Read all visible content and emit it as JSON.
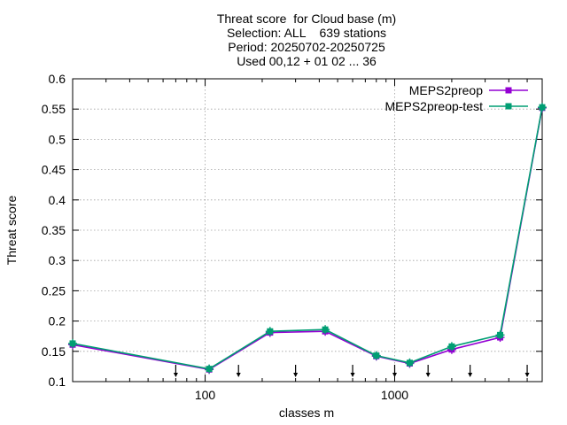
{
  "chart_data": {
    "type": "line",
    "title_lines": [
      "Threat score  for Cloud base (m)",
      "Selection: ALL    639 stations",
      "Period: 20250702-20250725",
      "Used 00,12 + 01 02 ... 36"
    ],
    "xlabel": "classes m",
    "ylabel": "Threat score",
    "x_scale": "log",
    "xlim": [
      20,
      6000
    ],
    "ylim": [
      0.1,
      0.6
    ],
    "x_ticks": [
      {
        "value": 100,
        "label": "100"
      },
      {
        "value": 1000,
        "label": "1000"
      }
    ],
    "y_ticks": [
      0.1,
      0.15,
      0.2,
      0.25,
      0.3,
      0.35,
      0.4,
      0.45,
      0.5,
      0.55,
      0.6
    ],
    "y_tick_labels": [
      "0.1",
      "0.15",
      "0.2",
      "0.25",
      "0.3",
      "0.35",
      "0.4",
      "0.45",
      "0.5",
      "0.55",
      "0.6"
    ],
    "grid": true,
    "legend_position": "top-right",
    "class_markers_x": [
      70,
      150,
      300,
      600,
      1000,
      1500,
      2500,
      5000
    ],
    "x": [
      20,
      105,
      220,
      430,
      800,
      1200,
      2000,
      3600,
      6000
    ],
    "series": [
      {
        "name": "MEPS2preop",
        "color": "#9400d3",
        "values": [
          0.161,
          0.12,
          0.181,
          0.183,
          0.142,
          0.13,
          0.153,
          0.173,
          0.552
        ]
      },
      {
        "name": "MEPS2preop-test",
        "color": "#009e73",
        "values": [
          0.163,
          0.121,
          0.183,
          0.186,
          0.143,
          0.131,
          0.158,
          0.177,
          0.553
        ]
      }
    ]
  }
}
